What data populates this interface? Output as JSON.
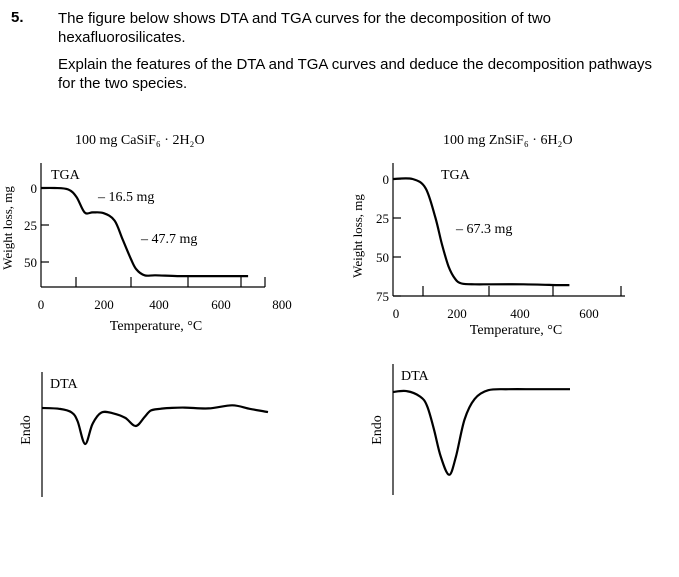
{
  "question": {
    "number": "5.",
    "line1": "The figure below shows DTA and TGA curves for the decomposition of two hexafluorosilicates.",
    "line2": "Explain the features of the DTA and TGA curves and deduce the decomposition pathways for the two species."
  },
  "chart_data": [
    {
      "type": "line",
      "sample_title": "100 mg  CaSiF₆ · 2H₂O",
      "label": "TGA",
      "xlabel": "Temperature, °C",
      "ylabel": "Weight loss, mg",
      "x_ticks": [
        "0",
        "200",
        "400",
        "600",
        "800"
      ],
      "y_ticks": [
        "0",
        "25",
        "50"
      ],
      "xlim": [
        0,
        800
      ],
      "ylim": [
        0,
        55
      ],
      "y_inverted": true,
      "annotations": [
        "– 16.5 mg",
        "– 47.7 mg"
      ],
      "x": [
        0,
        50,
        100,
        130,
        160,
        190,
        230,
        270,
        300,
        330,
        350,
        380,
        420,
        500,
        600,
        700,
        760
      ],
      "y": [
        0,
        0,
        1,
        6,
        16.5,
        16.5,
        17,
        22,
        35,
        48,
        55,
        59,
        59,
        59.5,
        59.5,
        59.5,
        59.5
      ]
    },
    {
      "type": "line",
      "sample_title": "100 mg  ZnSiF₆ · 6H₂O",
      "label": "TGA",
      "xlabel": "Temperature, °C",
      "ylabel": "Weight loss, mg",
      "x_ticks": [
        "0",
        "200",
        "400",
        "600"
      ],
      "y_ticks": [
        "0",
        "25",
        "50",
        "75"
      ],
      "xlim": [
        0,
        660
      ],
      "ylim": [
        0,
        75
      ],
      "y_inverted": true,
      "annotations": [
        "– 67.3 mg"
      ],
      "x": [
        0,
        60,
        100,
        130,
        150,
        170,
        190,
        210,
        250,
        300,
        400,
        500,
        540
      ],
      "y": [
        0,
        0,
        6,
        25,
        42,
        56,
        64,
        67,
        67.5,
        67.5,
        67.5,
        68,
        68
      ]
    },
    {
      "type": "line",
      "label": "DTA",
      "ylabel": "Endo",
      "x": [
        0,
        60,
        100,
        120,
        145,
        170,
        200,
        240,
        280,
        315,
        345,
        365,
        395,
        430,
        480,
        560,
        640,
        700,
        760
      ],
      "y": [
        0,
        0.2,
        1,
        3,
        8,
        3.5,
        1,
        1.2,
        2.2,
        4,
        2,
        0.6,
        0.2,
        0,
        -0.1,
        0.1,
        -0.6,
        0.2,
        0.9
      ]
    },
    {
      "type": "line",
      "label": "DTA",
      "ylabel": "Endo",
      "x": [
        0,
        40,
        80,
        100,
        120,
        140,
        165,
        185,
        210,
        240,
        280,
        340,
        420,
        520
      ],
      "y": [
        0,
        -0.2,
        1,
        3,
        8,
        14,
        18,
        14,
        6,
        1.5,
        -0.4,
        -0.6,
        -0.6,
        -0.6
      ]
    }
  ]
}
